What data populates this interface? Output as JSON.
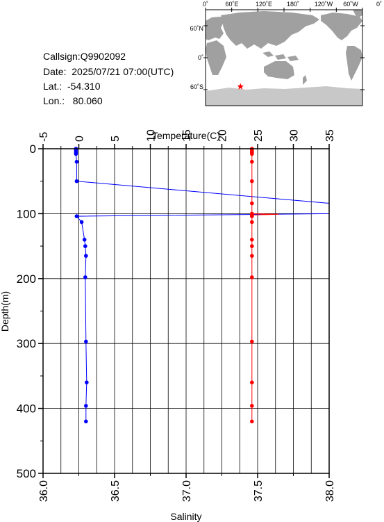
{
  "station": {
    "callsign_line": "Callsign:Q9902092",
    "date_line": "Date:  2025/07/21 07:00(UTC)",
    "lat_line": "Lat.:  -54.310",
    "lon_line": "Lon.:   80.060"
  },
  "map": {
    "lon_labels": [
      "0˚",
      "60˚E",
      "120˚E",
      "180˚",
      "120˚W",
      "60˚W",
      "0˚"
    ],
    "lat_labels": [
      "60˚N",
      "0˚",
      "60˚S"
    ],
    "marker": {
      "lon": 80.06,
      "lat": -54.31,
      "color": "#ff0000"
    },
    "ocean_color": "#ffffff",
    "land_color": "#a0a0a0",
    "ice_color": "#c8c8c8"
  },
  "chart_data": {
    "type": "line",
    "title": "",
    "ylabel": "Depth(m)",
    "ylim": [
      0,
      500
    ],
    "y_ticks": [
      0,
      100,
      200,
      300,
      400,
      500
    ],
    "y_inverted": true,
    "grid": true,
    "top_axis": {
      "label": "Temperature(C)",
      "lim": [
        -5,
        35
      ],
      "ticks": [
        -5,
        0,
        5,
        10,
        15,
        20,
        25,
        30,
        35
      ]
    },
    "bottom_axis": {
      "label": "Salinity",
      "lim": [
        36.0,
        38.0
      ],
      "ticks": [
        "36.0",
        "36.5",
        "37.0",
        "37.5",
        "38.0"
      ]
    },
    "series": [
      {
        "axis": "temperature",
        "color": "#0000ff",
        "points": [
          {
            "x": -0.4,
            "y": 0
          },
          {
            "x": -0.4,
            "y": 2
          },
          {
            "x": -0.4,
            "y": 4
          },
          {
            "x": -0.4,
            "y": 6
          },
          {
            "x": -0.4,
            "y": 8
          },
          {
            "x": -0.3,
            "y": 20
          },
          {
            "x": -0.3,
            "y": 50,
            "marker": true
          },
          {
            "x": 35.0,
            "y": 84,
            "marker": false
          },
          {
            "x": 35.0,
            "y": 100,
            "marker": false
          },
          {
            "x": -0.3,
            "y": 104
          },
          {
            "x": 0.4,
            "y": 113
          },
          {
            "x": 0.8,
            "y": 140
          },
          {
            "x": 0.9,
            "y": 150
          },
          {
            "x": 1.0,
            "y": 165
          },
          {
            "x": 0.9,
            "y": 198
          },
          {
            "x": 1.0,
            "y": 297
          },
          {
            "x": 1.1,
            "y": 360
          },
          {
            "x": 1.0,
            "y": 396
          },
          {
            "x": 1.0,
            "y": 420
          }
        ]
      },
      {
        "axis": "salinity",
        "color": "#ff0000",
        "points": [
          {
            "x": 37.46,
            "y": 0
          },
          {
            "x": 37.46,
            "y": 2
          },
          {
            "x": 37.46,
            "y": 4
          },
          {
            "x": 37.46,
            "y": 6
          },
          {
            "x": 37.46,
            "y": 8
          },
          {
            "x": 37.46,
            "y": 20
          },
          {
            "x": 37.46,
            "y": 50
          },
          {
            "x": 37.46,
            "y": 84
          },
          {
            "x": 37.46,
            "y": 100
          },
          {
            "x": 37.65,
            "y": 101,
            "marker": false
          },
          {
            "x": 37.46,
            "y": 102
          },
          {
            "x": 37.46,
            "y": 104
          },
          {
            "x": 37.46,
            "y": 113
          },
          {
            "x": 37.46,
            "y": 140
          },
          {
            "x": 37.46,
            "y": 150
          },
          {
            "x": 37.46,
            "y": 165
          },
          {
            "x": 37.46,
            "y": 198
          },
          {
            "x": 37.46,
            "y": 297
          },
          {
            "x": 37.46,
            "y": 360
          },
          {
            "x": 37.46,
            "y": 396
          },
          {
            "x": 37.46,
            "y": 420
          }
        ]
      }
    ]
  }
}
